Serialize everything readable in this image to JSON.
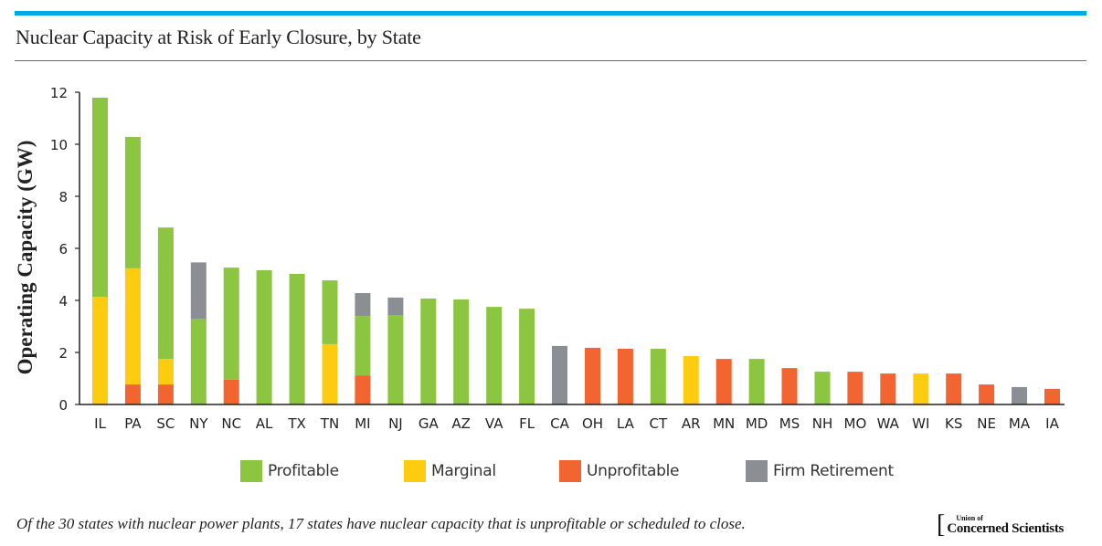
{
  "header": {
    "title": "Nuclear Capacity at Risk of Early Closure, by State"
  },
  "footer": {
    "note": "Of the 30 states with nuclear power plants, 17 states have nuclear capacity that is unprofitable or scheduled to close.",
    "logo_small": "Union of",
    "logo_big": "Concerned Scientists"
  },
  "colors": {
    "accent": "#00a9e6",
    "Unprofitable": "#f26531",
    "Marginal": "#fdcc10",
    "Profitable": "#8cc540",
    "Firm Retirement": "#8b8f94"
  },
  "chart_data": {
    "type": "bar",
    "stacked": true,
    "title": "Nuclear Capacity at Risk of Early Closure, by State",
    "xlabel": "",
    "ylabel": "Operating Capacity (GW)",
    "ylim": [
      0,
      12
    ],
    "yticks": [
      0,
      2,
      4,
      6,
      8,
      10,
      12
    ],
    "grid": false,
    "legend_position": "bottom",
    "categories": [
      "IL",
      "PA",
      "SC",
      "NY",
      "NC",
      "AL",
      "TX",
      "TN",
      "MI",
      "NJ",
      "GA",
      "AZ",
      "VA",
      "FL",
      "CA",
      "OH",
      "LA",
      "CT",
      "AR",
      "MN",
      "MD",
      "MS",
      "NH",
      "MO",
      "WA",
      "WI",
      "KS",
      "NE",
      "MA",
      "IA"
    ],
    "series": [
      {
        "name": "Unprofitable",
        "values": [
          0,
          0.77,
          0.77,
          0,
          0.95,
          0,
          0,
          0,
          1.12,
          0,
          0,
          0,
          0,
          0,
          0,
          2.18,
          2.14,
          0,
          0,
          1.75,
          0,
          1.4,
          0,
          1.26,
          1.19,
          0,
          1.19,
          0.77,
          0,
          0.6
        ]
      },
      {
        "name": "Marginal",
        "values": [
          4.14,
          4.46,
          0.98,
          0,
          0,
          0,
          0,
          2.32,
          0,
          0,
          0,
          0,
          0,
          0,
          0,
          0,
          0,
          0,
          1.86,
          0,
          0,
          0,
          0,
          0,
          0,
          1.19,
          0,
          0,
          0,
          0
        ]
      },
      {
        "name": "Profitable",
        "values": [
          7.65,
          5.05,
          5.05,
          3.3,
          4.31,
          5.16,
          5.02,
          2.45,
          2.28,
          3.44,
          4.07,
          4.04,
          3.75,
          3.68,
          0,
          0,
          0,
          2.14,
          0,
          0,
          1.75,
          0,
          1.26,
          0,
          0,
          0,
          0,
          0,
          0,
          0
        ]
      },
      {
        "name": "Firm Retirement",
        "values": [
          0,
          0,
          0,
          2.16,
          0,
          0,
          0,
          0,
          0.88,
          0.67,
          0,
          0,
          0,
          0,
          2.25,
          0,
          0,
          0,
          0,
          0,
          0,
          0,
          0,
          0,
          0,
          0,
          0,
          0,
          0.67,
          0
        ]
      }
    ],
    "legend": [
      "Profitable",
      "Marginal",
      "Unprofitable",
      "Firm Retirement"
    ]
  }
}
